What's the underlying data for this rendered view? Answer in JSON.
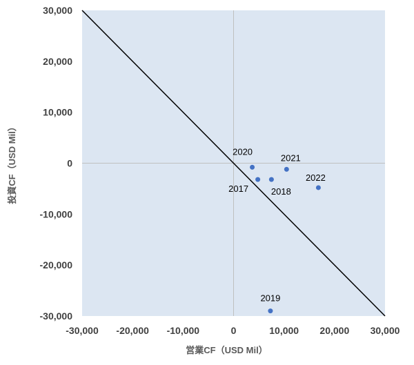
{
  "chart_data": {
    "type": "scatter",
    "title": "",
    "xlabel": "営業CF（USD Mil）",
    "ylabel": "投資CF（USD Mil）",
    "xlim": [
      -30000,
      30000
    ],
    "ylim": [
      -30000,
      30000
    ],
    "x_ticks": [
      -30000,
      -20000,
      -10000,
      0,
      10000,
      20000,
      30000
    ],
    "y_ticks": [
      -30000,
      -20000,
      -10000,
      0,
      10000,
      20000,
      30000
    ],
    "x_tick_labels": [
      "-30,000",
      "-20,000",
      "-10,000",
      "0",
      "10,000",
      "20,000",
      "30,000"
    ],
    "y_tick_labels": [
      "-30,000",
      "-20,000",
      "-10,000",
      "0",
      "10,000",
      "20,000",
      "30,000"
    ],
    "grid": false,
    "legend": "none",
    "points": [
      {
        "label": "2017",
        "x": 4800,
        "y": -3200
      },
      {
        "label": "2018",
        "x": 7500,
        "y": -3200
      },
      {
        "label": "2019",
        "x": 7300,
        "y": -29000
      },
      {
        "label": "2020",
        "x": 3700,
        "y": -800
      },
      {
        "label": "2021",
        "x": 10500,
        "y": -1200
      },
      {
        "label": "2022",
        "x": 16800,
        "y": -4800
      }
    ],
    "reference_line": {
      "from": [
        -30000,
        30000
      ],
      "to": [
        30000,
        -30000
      ]
    },
    "colors": {
      "plot_background": "#dce6f2",
      "point": "#4472c4",
      "reference_line": "#000000",
      "zero_lines": "#bfbfbf"
    }
  }
}
